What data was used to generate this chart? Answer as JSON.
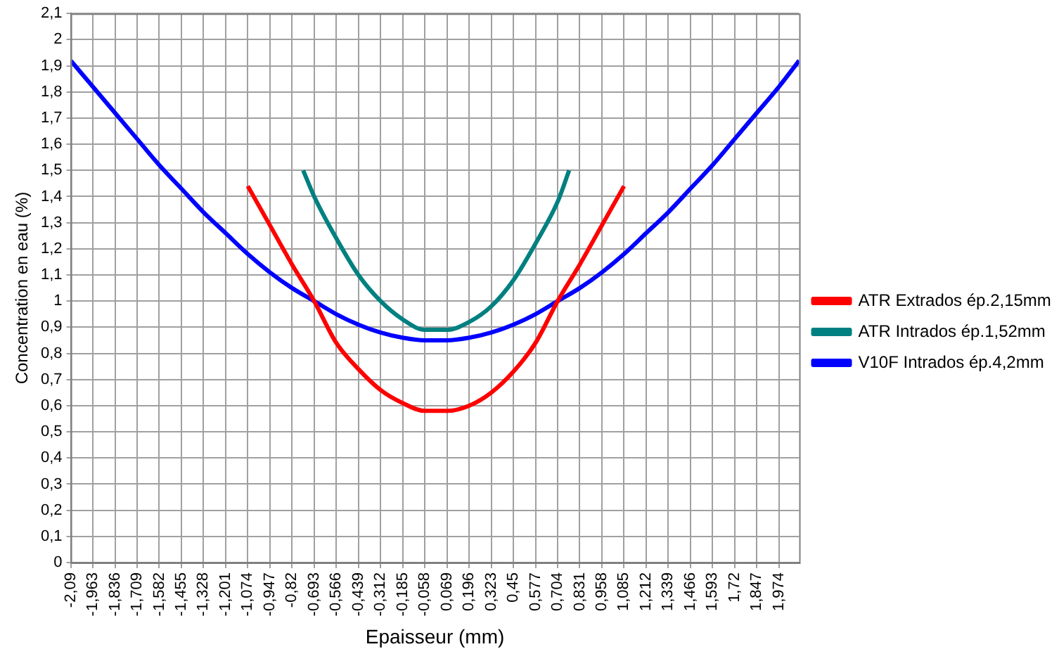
{
  "chart_data": {
    "type": "line",
    "xlabel": "Epaisseur (mm)",
    "ylabel": "Concentration en eau (%)",
    "series": [
      {
        "name": "ATR Extrados ép.2,15mm",
        "color": "#ff0000",
        "x": [
          -1.074,
          -0.947,
          -0.82,
          -0.693,
          -0.566,
          -0.439,
          -0.312,
          -0.185,
          -0.058,
          0.069,
          0.196,
          0.323,
          0.45,
          0.577,
          0.704,
          0.831,
          0.958,
          1.085
        ],
        "values": [
          1.44,
          1.29,
          1.14,
          1.0,
          0.84,
          0.74,
          0.66,
          0.61,
          0.58,
          0.58,
          0.6,
          0.65,
          0.73,
          0.84,
          1.0,
          1.14,
          1.29,
          1.44
        ]
      },
      {
        "name": "ATR Intrados ép.1,52mm",
        "color": "#008080",
        "x": [
          -0.756,
          -0.693,
          -0.566,
          -0.439,
          -0.312,
          -0.185,
          -0.058,
          0.069,
          0.196,
          0.323,
          0.45,
          0.577,
          0.704,
          0.77
        ],
        "values": [
          1.5,
          1.4,
          1.24,
          1.1,
          1.0,
          0.93,
          0.89,
          0.89,
          0.92,
          0.98,
          1.08,
          1.22,
          1.38,
          1.5
        ]
      },
      {
        "name": "V10F Intrados ép.4,2mm",
        "color": "#0000ff",
        "x": [
          -2.09,
          -1.963,
          -1.836,
          -1.709,
          -1.582,
          -1.455,
          -1.328,
          -1.201,
          -1.074,
          -0.947,
          -0.82,
          -0.693,
          -0.566,
          -0.439,
          -0.312,
          -0.185,
          -0.058,
          0.069,
          0.196,
          0.323,
          0.45,
          0.577,
          0.704,
          0.831,
          0.958,
          1.085,
          1.212,
          1.339,
          1.466,
          1.593,
          1.72,
          1.847,
          1.974,
          2.09
        ],
        "values": [
          1.92,
          1.82,
          1.72,
          1.62,
          1.52,
          1.43,
          1.34,
          1.26,
          1.18,
          1.11,
          1.05,
          1.0,
          0.95,
          0.91,
          0.88,
          0.86,
          0.85,
          0.85,
          0.86,
          0.88,
          0.91,
          0.95,
          1.0,
          1.05,
          1.11,
          1.18,
          1.26,
          1.34,
          1.43,
          1.52,
          1.62,
          1.72,
          1.82,
          1.92
        ]
      }
    ],
    "xlim": [
      -2.09,
      2.09
    ],
    "xticks": [
      {
        "value": -2.09,
        "label": "-2,09"
      },
      {
        "value": -1.963,
        "label": "-1,963"
      },
      {
        "value": -1.836,
        "label": "-1,836"
      },
      {
        "value": -1.709,
        "label": "-1,709"
      },
      {
        "value": -1.582,
        "label": "-1,582"
      },
      {
        "value": -1.455,
        "label": "-1,455"
      },
      {
        "value": -1.328,
        "label": "-1,328"
      },
      {
        "value": -1.201,
        "label": "-1,201"
      },
      {
        "value": -1.074,
        "label": "-1,074"
      },
      {
        "value": -0.947,
        "label": "-0,947"
      },
      {
        "value": -0.82,
        "label": "-0,82"
      },
      {
        "value": -0.693,
        "label": "-0,693"
      },
      {
        "value": -0.566,
        "label": "-0,566"
      },
      {
        "value": -0.439,
        "label": "-0,439"
      },
      {
        "value": -0.312,
        "label": "-0,312"
      },
      {
        "value": -0.185,
        "label": "-0,185"
      },
      {
        "value": -0.058,
        "label": "-0,058"
      },
      {
        "value": 0.069,
        "label": "0,069"
      },
      {
        "value": 0.196,
        "label": "0,196"
      },
      {
        "value": 0.323,
        "label": "0,323"
      },
      {
        "value": 0.45,
        "label": "0,45"
      },
      {
        "value": 0.577,
        "label": "0,577"
      },
      {
        "value": 0.704,
        "label": "0,704"
      },
      {
        "value": 0.831,
        "label": "0,831"
      },
      {
        "value": 0.958,
        "label": "0,958"
      },
      {
        "value": 1.085,
        "label": "1,085"
      },
      {
        "value": 1.212,
        "label": "1,212"
      },
      {
        "value": 1.339,
        "label": "1,339"
      },
      {
        "value": 1.466,
        "label": "1,466"
      },
      {
        "value": 1.593,
        "label": "1,593"
      },
      {
        "value": 1.72,
        "label": "1,72"
      },
      {
        "value": 1.847,
        "label": "1,847"
      },
      {
        "value": 1.974,
        "label": "1,974"
      }
    ],
    "ylim": [
      0,
      2.1
    ],
    "yticks": [
      0,
      {
        "value": 0.1,
        "label": "0,1"
      },
      {
        "value": 0.2,
        "label": "0,2"
      },
      {
        "value": 0.3,
        "label": "0,3"
      },
      {
        "value": 0.4,
        "label": "0,4"
      },
      {
        "value": 0.5,
        "label": "0,5"
      },
      {
        "value": 0.6,
        "label": "0,6"
      },
      {
        "value": 0.7,
        "label": "0,7"
      },
      {
        "value": 0.8,
        "label": "0,8"
      },
      {
        "value": 0.9,
        "label": "0,9"
      },
      1,
      {
        "value": 1.1,
        "label": "1,1"
      },
      {
        "value": 1.2,
        "label": "1,2"
      },
      {
        "value": 1.3,
        "label": "1,3"
      },
      {
        "value": 1.4,
        "label": "1,4"
      },
      {
        "value": 1.5,
        "label": "1,5"
      },
      {
        "value": 1.6,
        "label": "1,6"
      },
      {
        "value": 1.7,
        "label": "1,7"
      },
      {
        "value": 1.8,
        "label": "1,8"
      },
      {
        "value": 1.9,
        "label": "1,9"
      },
      2,
      {
        "value": 2.1,
        "label": "2,1"
      }
    ],
    "grid": true,
    "legend": "right",
    "marker": "none",
    "line_style": "solid"
  }
}
